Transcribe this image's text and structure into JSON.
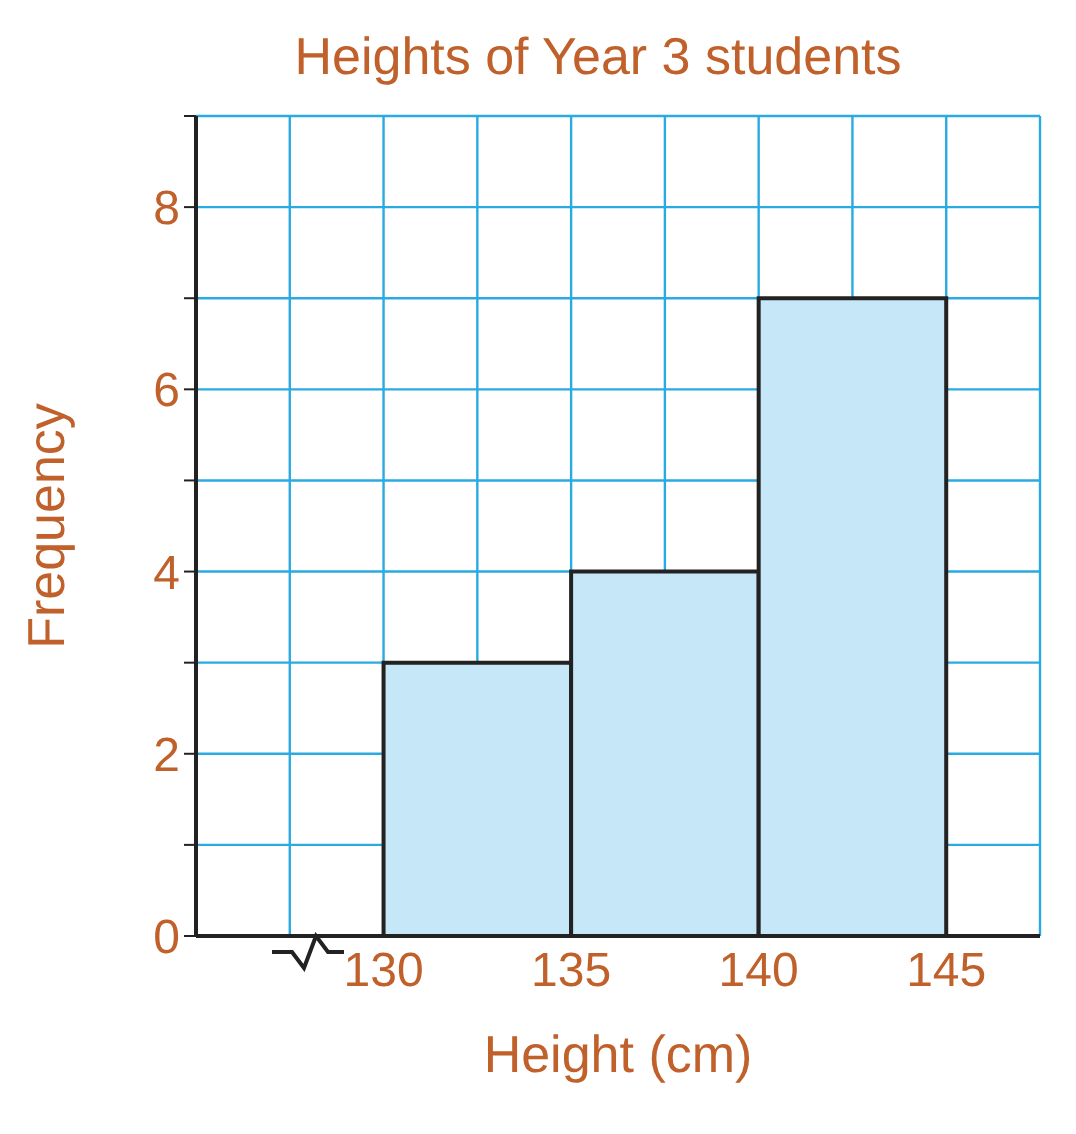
{
  "chart_data": {
    "type": "histogram",
    "title": "Heights of Year 3 students",
    "xlabel": "Height (cm)",
    "ylabel": "Frequency",
    "bins": [
      130,
      135,
      140,
      145
    ],
    "values": [
      3,
      4,
      7
    ],
    "color": "#c6e7f8",
    "xlim": [
      125,
      147.5
    ],
    "xticks": [
      {
        "value": 125,
        "label": null
      },
      {
        "value": 127.5,
        "label": null
      },
      130,
      {
        "value": 132.5,
        "label": null
      },
      135,
      {
        "value": 137.5,
        "label": null
      },
      140,
      {
        "value": 142.5,
        "label": null
      },
      145,
      {
        "value": 147.5,
        "label": null
      }
    ],
    "ylim": [
      0,
      9
    ],
    "yticks": [
      0,
      {
        "value": 1,
        "label": null
      },
      2,
      {
        "value": 3,
        "label": null
      },
      4,
      {
        "value": 5,
        "label": null
      },
      6,
      {
        "value": 7,
        "label": null
      },
      8,
      {
        "value": 9,
        "label": null
      }
    ],
    "grid": true
  }
}
